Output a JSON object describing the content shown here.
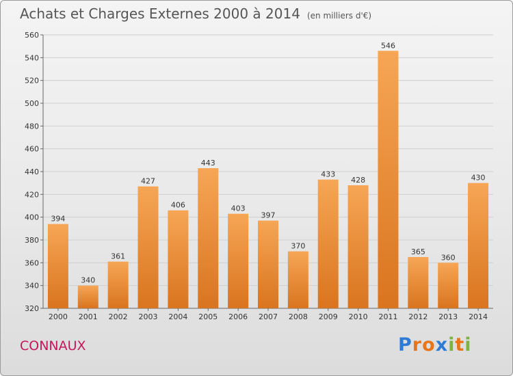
{
  "title": "Achats et Charges Externes 2000 à 2014",
  "subtitle": "(en milliers d'€)",
  "commune": "CONNAUX",
  "logo": {
    "text": "Proxiti",
    "letters": [
      {
        "ch": "P",
        "color": "#2e7bd6"
      },
      {
        "ch": "r",
        "color": "#e8751a"
      },
      {
        "ch": "o",
        "color": "#e8751a"
      },
      {
        "ch": "x",
        "color": "#2e7bd6"
      },
      {
        "ch": "i",
        "color": "#7cb342"
      },
      {
        "ch": "t",
        "color": "#e8751a"
      },
      {
        "ch": "i",
        "color": "#7cb342"
      }
    ]
  },
  "colors": {
    "bar_top": "#f6a655",
    "bar_bottom": "#d9741f",
    "grid": "#cfcfcf",
    "title": "#555555",
    "commune": "#c2185b"
  },
  "chart_data": {
    "type": "bar",
    "categories": [
      "2000",
      "2001",
      "2002",
      "2003",
      "2004",
      "2005",
      "2006",
      "2007",
      "2008",
      "2009",
      "2010",
      "2011",
      "2012",
      "2013",
      "2014"
    ],
    "values": [
      394,
      340,
      361,
      427,
      406,
      443,
      403,
      397,
      370,
      433,
      428,
      546,
      365,
      360,
      430
    ],
    "title": "Achats et Charges Externes 2000 à 2014",
    "ylim": [
      320,
      560
    ],
    "yticks": [
      320,
      340,
      360,
      380,
      400,
      420,
      440,
      460,
      480,
      500,
      520,
      540,
      560
    ],
    "grid": true,
    "legend": "none"
  }
}
